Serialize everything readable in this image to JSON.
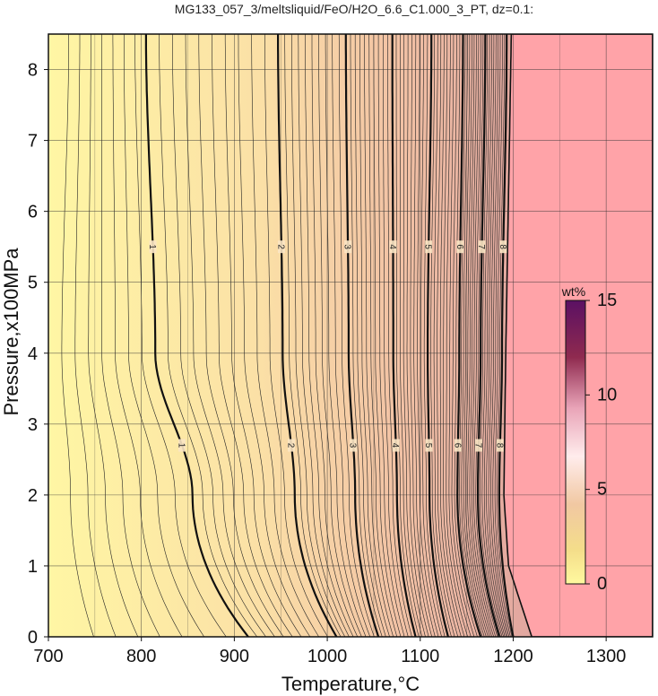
{
  "title": "MG133_057_3/meltsliquid/FeO/H2O_6.6_C1.000_3_PT, dz=0.1:",
  "chart_data": {
    "type": "heatmap",
    "xlabel": "Temperature,°C",
    "ylabel": "Pressure,x100MPa",
    "xlim": [
      700,
      1350
    ],
    "ylim": [
      0,
      8.5
    ],
    "xticks": [
      "700",
      "800",
      "900",
      "1000",
      "1100",
      "1200",
      "1300"
    ],
    "yticks": [
      "0",
      "1",
      "2",
      "3",
      "4",
      "5",
      "6",
      "7",
      "8"
    ],
    "grid": true,
    "colorbar": {
      "label": "wt%",
      "range": [
        0,
        15
      ],
      "ticks": [
        "0",
        "5",
        "10",
        "15"
      ],
      "placement": "inside-right"
    },
    "contour_interval": 0.1,
    "solidus_region_color": "#ffa3a8",
    "major_contours": [
      {
        "label": "1",
        "x_at_p0": 915,
        "x_at_p2": 855,
        "x_at_p4": 815,
        "x_top": 805
      },
      {
        "label": "2",
        "x_at_p0": 1010,
        "x_at_p2": 965,
        "x_at_p4": 952,
        "x_top": 947
      },
      {
        "label": "3",
        "x_at_p0": 1055,
        "x_at_p2": 1030,
        "x_at_p4": 1023,
        "x_top": 1020
      },
      {
        "label": "4",
        "x_at_p0": 1095,
        "x_at_p2": 1075,
        "x_at_p4": 1071,
        "x_top": 1070
      },
      {
        "label": "5",
        "x_at_p0": 1130,
        "x_at_p2": 1110,
        "x_at_p4": 1108,
        "x_top": 1112
      },
      {
        "label": "6",
        "x_at_p0": 1165,
        "x_at_p2": 1140,
        "x_at_p4": 1142,
        "x_top": 1146
      },
      {
        "label": "7",
        "x_at_p0": 1185,
        "x_at_p2": 1162,
        "x_at_p4": 1165,
        "x_top": 1170
      },
      {
        "label": "8",
        "x_at_p0": 1200,
        "x_at_p2": 1185,
        "x_at_p4": 1188,
        "x_top": 1193
      }
    ],
    "solidus_boundary": {
      "x_at_p0": 1220,
      "x_at_p1": 1195,
      "x_at_p2": 1190,
      "x_at_p4": 1192,
      "x_top": 1198
    }
  }
}
